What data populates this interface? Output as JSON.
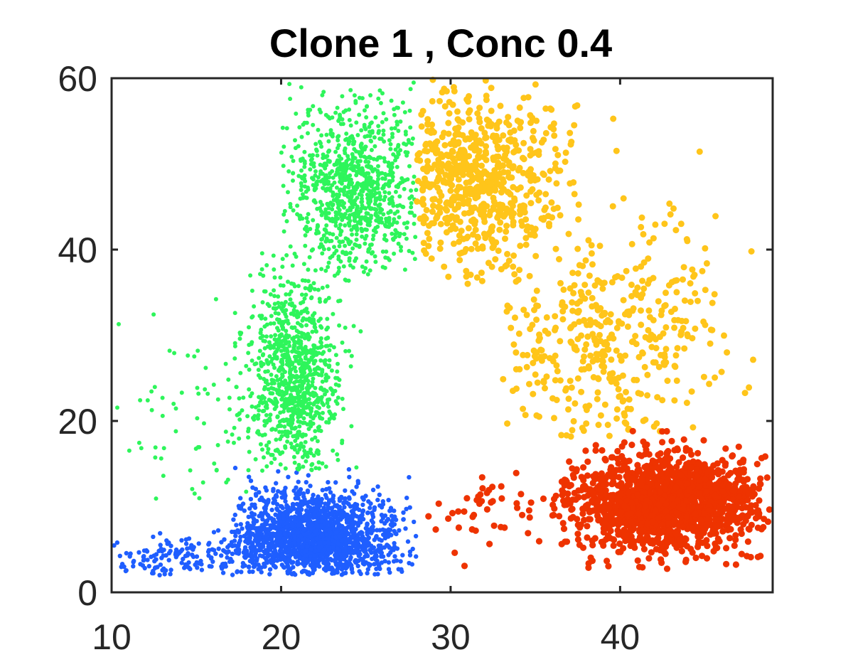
{
  "chart_data": {
    "type": "scatter",
    "title": "Clone 1 , Conc 0.4",
    "xlabel": "",
    "ylabel": "",
    "xlim": [
      10,
      49
    ],
    "ylim": [
      0,
      60
    ],
    "x_ticks": [
      10,
      20,
      30,
      40
    ],
    "y_ticks": [
      0,
      20,
      40,
      60
    ],
    "x_tick_labels": [
      "10",
      "20",
      "30",
      "40"
    ],
    "y_tick_labels": [
      "0",
      "20",
      "40",
      "60"
    ],
    "grid": false,
    "legend": "none",
    "series": [
      {
        "color": "#1F5EFF",
        "marker_size": 3.2,
        "clusters": [
          {
            "cx": 22.0,
            "cy": 6.5,
            "sx": 2.4,
            "sy": 2.6,
            "n": 1700,
            "xmin": 17.0,
            "xmax": 28.0,
            "ymin": 2.0,
            "ymax": 15.0
          },
          {
            "cx": 15.0,
            "cy": 4.0,
            "sx": 3.2,
            "sy": 1.4,
            "n": 170,
            "xmin": 10.0,
            "xmax": 19.0,
            "ymin": 2.0,
            "ymax": 9.0
          }
        ]
      },
      {
        "color": "#2EF55B",
        "marker_size": 3.0,
        "clusters": [
          {
            "cx": 20.8,
            "cy": 25.0,
            "sx": 1.3,
            "sy": 6.0,
            "n": 950,
            "xmin": 17.0,
            "xmax": 25.5,
            "ymin": 14.0,
            "ymax": 40.0
          },
          {
            "cx": 24.2,
            "cy": 47.0,
            "sx": 2.0,
            "sy": 5.0,
            "n": 950,
            "xmin": 20.0,
            "xmax": 28.0,
            "ymin": 36.0,
            "ymax": 60.0
          },
          {
            "cx": 15.5,
            "cy": 20.0,
            "sx": 2.8,
            "sy": 6.5,
            "n": 75,
            "xmin": 10.0,
            "xmax": 19.0,
            "ymin": 10.0,
            "ymax": 36.0
          }
        ]
      },
      {
        "color": "#FFC51A",
        "marker_size": 4.5,
        "clusters": [
          {
            "cx": 31.5,
            "cy": 48.0,
            "sx": 2.6,
            "sy": 5.0,
            "n": 650,
            "xmin": 28.0,
            "xmax": 38.0,
            "ymin": 36.0,
            "ymax": 60.0
          },
          {
            "cx": 39.0,
            "cy": 29.0,
            "sx": 3.5,
            "sy": 6.0,
            "n": 380,
            "xmin": 33.0,
            "xmax": 48.0,
            "ymin": 18.0,
            "ymax": 45.0
          },
          {
            "cx": 43.0,
            "cy": 40.0,
            "sx": 3.0,
            "sy": 7.0,
            "n": 40,
            "xmin": 38.0,
            "xmax": 48.0,
            "ymin": 25.0,
            "ymax": 56.0
          }
        ]
      },
      {
        "color": "#EE3300",
        "marker_size": 4.6,
        "clusters": [
          {
            "cx": 42.5,
            "cy": 10.5,
            "sx": 3.0,
            "sy": 2.8,
            "n": 1500,
            "xmin": 36.0,
            "xmax": 49.0,
            "ymin": 2.5,
            "ymax": 19.0
          },
          {
            "cx": 32.0,
            "cy": 10.0,
            "sx": 2.6,
            "sy": 3.2,
            "n": 45,
            "xmin": 28.0,
            "xmax": 36.0,
            "ymin": 3.0,
            "ymax": 16.0
          }
        ]
      }
    ]
  }
}
